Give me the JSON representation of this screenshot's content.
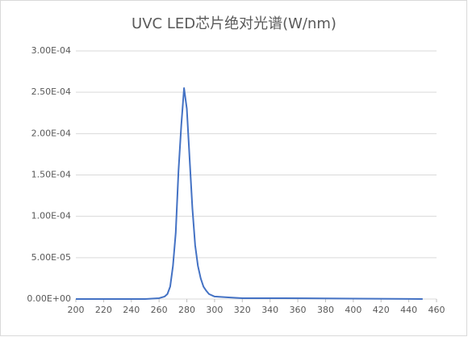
{
  "chart_data": {
    "type": "line",
    "title": "UVC LED芯片绝对光谱(W/nm)",
    "x": [
      200,
      250,
      260,
      264,
      266,
      268,
      270,
      272,
      274,
      276,
      278,
      280,
      282,
      284,
      286,
      288,
      290,
      292,
      294,
      296,
      300,
      310,
      320,
      350,
      400,
      450
    ],
    "series": [
      {
        "name": "UVC LED",
        "color": "#4472c4",
        "values": [
          0,
          0,
          1e-06,
          3e-06,
          6e-06,
          1.5e-05,
          4e-05,
          8e-05,
          0.000155,
          0.00021,
          0.000255,
          0.00023,
          0.00017,
          0.00011,
          6.5e-05,
          4e-05,
          2.5e-05,
          1.5e-05,
          1e-05,
          6e-06,
          3e-06,
          2e-06,
          1e-06,
          1e-06,
          5e-07,
          0
        ]
      }
    ],
    "xlim": [
      200,
      460
    ],
    "xticks": [
      200,
      220,
      240,
      260,
      280,
      300,
      320,
      340,
      360,
      380,
      400,
      420,
      440,
      460
    ],
    "ylim": [
      0,
      0.0003
    ],
    "yticks": [
      {
        "value": 0,
        "label": "0.00E+00"
      },
      {
        "value": 5e-05,
        "label": "5.00E-05"
      },
      {
        "value": 0.0001,
        "label": "1.00E-04"
      },
      {
        "value": 0.00015,
        "label": "1.50E-04"
      },
      {
        "value": 0.0002,
        "label": "2.00E-04"
      },
      {
        "value": 0.00025,
        "label": "2.50E-04"
      },
      {
        "value": 0.0003,
        "label": "3.00E-04"
      }
    ],
    "grid": true
  }
}
